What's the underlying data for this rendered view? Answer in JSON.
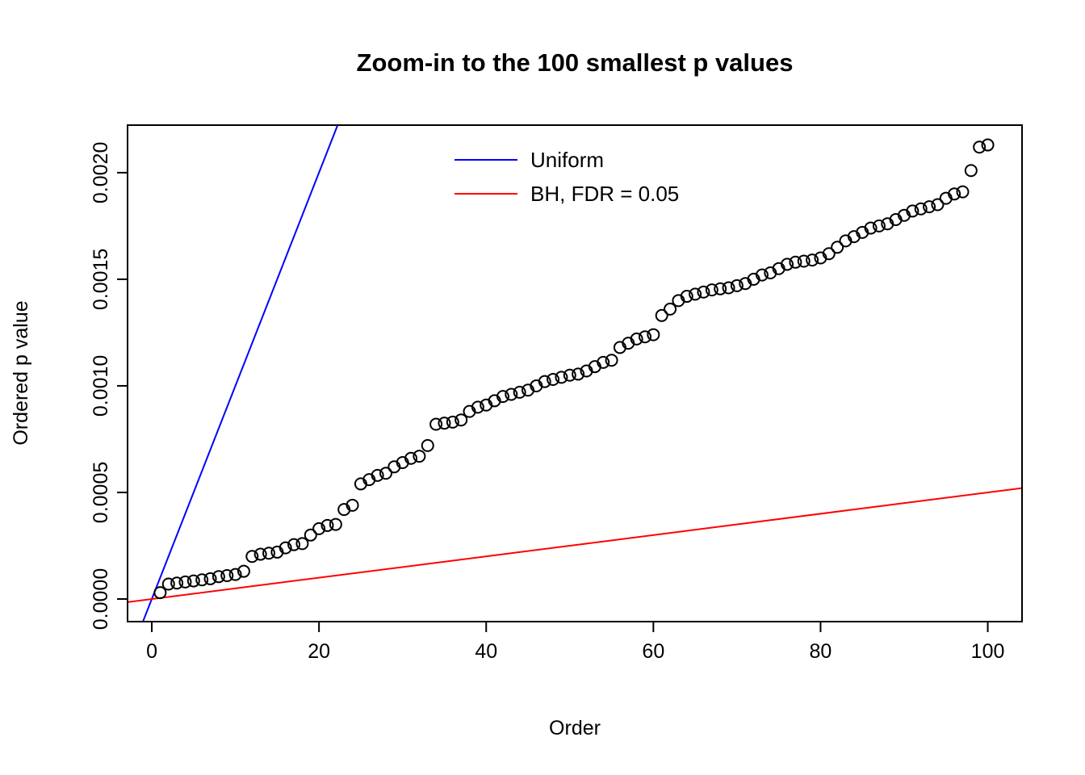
{
  "chart_data": {
    "type": "scatter",
    "title": "Zoom-in to the 100 smallest p values",
    "xlabel": "Order",
    "ylabel": "Ordered p value",
    "xlim": [
      -2.9,
      104.1
    ],
    "ylim": [
      -0.000106,
      0.002223
    ],
    "x_ticks": [
      0,
      20,
      40,
      60,
      80,
      100
    ],
    "y_ticks": [
      0,
      0.0005,
      0.001,
      0.0015,
      0.002
    ],
    "y_tick_labels": [
      "0.0000",
      "0.0005",
      "0.0010",
      "0.0015",
      "0.0020"
    ],
    "grid": false,
    "box": true,
    "point_color": "#000000",
    "points": {
      "x_start": 1,
      "y": [
        3e-05,
        7e-05,
        7.5e-05,
        8e-05,
        8.5e-05,
        9e-05,
        9.5e-05,
        0.000105,
        0.00011,
        0.000115,
        0.00013,
        0.0002,
        0.00021,
        0.000215,
        0.00022,
        0.00024,
        0.000255,
        0.00026,
        0.0003,
        0.00033,
        0.000345,
        0.00035,
        0.00042,
        0.00044,
        0.00054,
        0.00056,
        0.00058,
        0.00059,
        0.00062,
        0.00064,
        0.00066,
        0.00067,
        0.00072,
        0.00082,
        0.000825,
        0.00083,
        0.00084,
        0.00088,
        0.0009,
        0.00091,
        0.00093,
        0.00095,
        0.00096,
        0.00097,
        0.00098,
        0.001,
        0.00102,
        0.00103,
        0.00104,
        0.00105,
        0.001055,
        0.00107,
        0.00109,
        0.00111,
        0.00112,
        0.00118,
        0.0012,
        0.00122,
        0.00123,
        0.00124,
        0.00133,
        0.00136,
        0.0014,
        0.00142,
        0.00143,
        0.00144,
        0.00145,
        0.001455,
        0.00146,
        0.00147,
        0.00148,
        0.0015,
        0.00152,
        0.00153,
        0.00155,
        0.00157,
        0.00158,
        0.001585,
        0.00159,
        0.0016,
        0.00162,
        0.00165,
        0.00168,
        0.0017,
        0.00172,
        0.00174,
        0.00175,
        0.00176,
        0.00178,
        0.0018,
        0.00182,
        0.00183,
        0.00184,
        0.00185,
        0.00188,
        0.0019,
        0.00191,
        0.00201,
        0.00212,
        0.00213
      ]
    },
    "lines": [
      {
        "key": "uniform-line",
        "name": "Uniform",
        "color": "#0000ff",
        "slope": 0.0001,
        "intercept": 0
      },
      {
        "key": "bh-line",
        "name": "BH, FDR = 0.05",
        "color": "#ff0000",
        "slope": 5e-06,
        "intercept": 0
      }
    ],
    "legend": {
      "position": "top-center",
      "entries": [
        {
          "label": "Uniform",
          "color": "#0000ff"
        },
        {
          "label": "BH, FDR = 0.05",
          "color": "#ff0000"
        }
      ]
    }
  }
}
